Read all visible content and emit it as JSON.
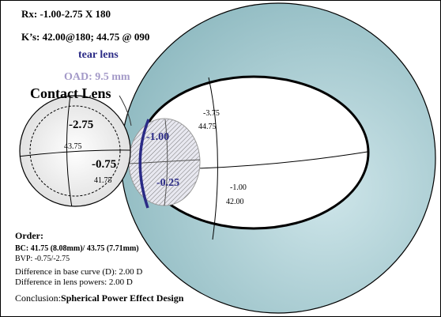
{
  "header": {
    "rx": "Rx: -1.00-2.75 X 180",
    "ks": "K’s: 42.00@180; 44.75 @ 090"
  },
  "labels": {
    "tear_lens": "tear lens",
    "oad": "OAD: 9.5 mm",
    "contact_lens": "Contact Lens"
  },
  "contact_lens": {
    "vertical_power": "-2.75",
    "vertical_curve": "43.75",
    "horizontal_power": "-0.75",
    "horizontal_curve": "41.75"
  },
  "tear_lens": {
    "vertical_power": "-1.00",
    "horizontal_power": "-0.25"
  },
  "cornea": {
    "vertical_power": "-3.75",
    "vertical_curve": "44.75",
    "horizontal_power": "-1.00",
    "horizontal_curve": "42.00"
  },
  "order": {
    "title": "Order:",
    "bc": "BC: 41.75 (8.08mm)/ 43.75 (7.71mm)",
    "bvp": "BVP:  -0.75/-2.75"
  },
  "notes": {
    "base_curve_diff": "Difference in base curve (D): 2.00 D",
    "lens_power_diff": "Difference in lens powers: 2.00 D",
    "conclusion_label": "Conclusion:",
    "conclusion_value": "Spherical Power Effect Design"
  },
  "colors": {
    "eye_fill": "#a8cdd2",
    "tear_lens_color": "#2b2b86",
    "oad_color": "#a49ac8",
    "outline": "#000000"
  }
}
